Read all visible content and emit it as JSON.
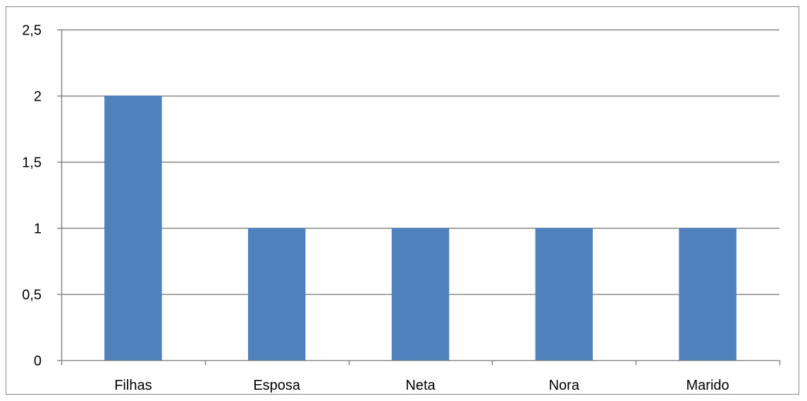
{
  "chart_data": {
    "type": "bar",
    "categories": [
      "Filhas",
      "Esposa",
      "Neta",
      "Nora",
      "Marido"
    ],
    "values": [
      2,
      1,
      1,
      1,
      1
    ],
    "title": "",
    "xlabel": "",
    "ylabel": "",
    "ylim": [
      0,
      2.5
    ],
    "yticks": [
      0,
      0.5,
      1,
      1.5,
      2,
      2.5
    ],
    "ytick_labels": [
      "0",
      "0,5",
      "1",
      "1,5",
      "2",
      "2,5"
    ],
    "grid": true,
    "legend": "none",
    "bar_color": "#4f81bd",
    "grid_color": "#868686"
  }
}
